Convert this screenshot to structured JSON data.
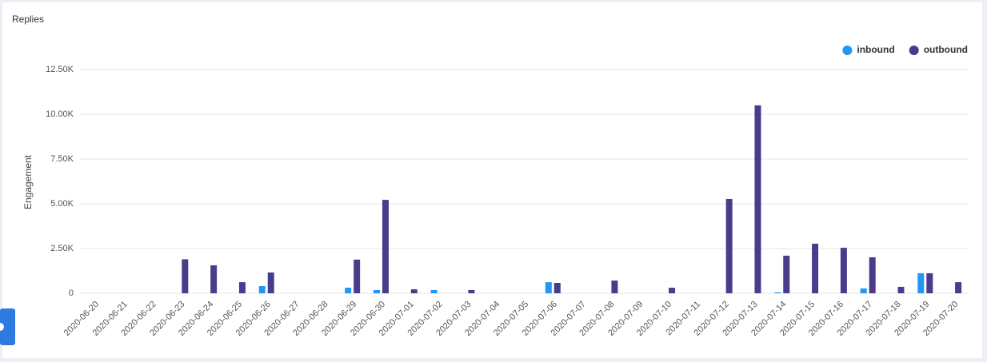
{
  "chart_data": {
    "type": "bar",
    "title": "Replies",
    "y_label": "Engagement",
    "categories": [
      "2020-06-20",
      "2020-06-21",
      "2020-06-22",
      "2020-06-23",
      "2020-06-24",
      "2020-06-25",
      "2020-06-26",
      "2020-06-27",
      "2020-06-28",
      "2020-06-29",
      "2020-06-30",
      "2020-07-01",
      "2020-07-02",
      "2020-07-03",
      "2020-07-04",
      "2020-07-05",
      "2020-07-06",
      "2020-07-07",
      "2020-07-08",
      "2020-07-09",
      "2020-07-10",
      "2020-07-11",
      "2020-07-12",
      "2020-07-13",
      "2020-07-14",
      "2020-07-15",
      "2020-07-16",
      "2020-07-17",
      "2020-07-18",
      "2020-07-19",
      "2020-07-20"
    ],
    "series": [
      {
        "name": "inbound",
        "color": "#2196f3",
        "values": [
          0,
          0,
          0,
          0,
          0,
          0,
          400,
          0,
          0,
          310,
          180,
          0,
          180,
          0,
          0,
          0,
          620,
          0,
          0,
          0,
          0,
          0,
          0,
          0,
          50,
          0,
          0,
          270,
          0,
          1120,
          0
        ]
      },
      {
        "name": "outbound",
        "color": "#483d8b",
        "values": [
          0,
          0,
          0,
          1900,
          1560,
          620,
          1160,
          0,
          0,
          1880,
          5220,
          220,
          0,
          180,
          0,
          0,
          580,
          0,
          710,
          0,
          310,
          0,
          5270,
          10500,
          2100,
          2770,
          2540,
          2010,
          360,
          1120,
          620
        ]
      }
    ],
    "ylim": [
      0,
      12500
    ],
    "yticks": [
      0,
      {
        "value": 2500,
        "label": "2.50K"
      },
      {
        "value": 5000,
        "label": "5.00K"
      },
      {
        "value": 7500,
        "label": "7.50K"
      },
      {
        "value": 10000,
        "label": "10.00K"
      },
      {
        "value": 12500,
        "label": "12.50K"
      }
    ],
    "grid": true,
    "legend": "top-right"
  }
}
